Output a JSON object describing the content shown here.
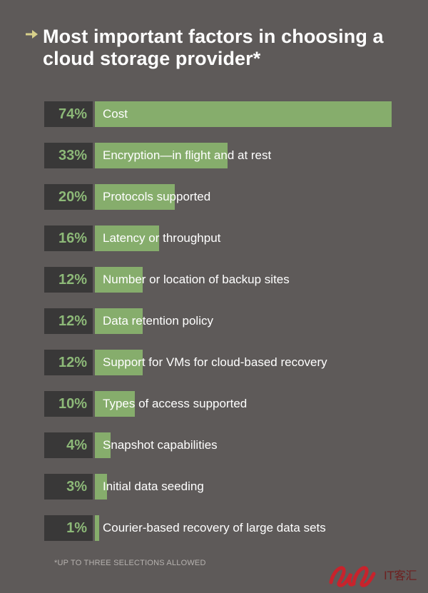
{
  "header": {
    "title": "Most important factors in choosing a\ncloud storage provider*"
  },
  "footnote": "*UP TO THREE SELECTIONS ALLOWED",
  "colors": {
    "background": "#5e5a59",
    "bar": "#86ad6c",
    "percent_box": "#393838",
    "percent_text": "#8db978",
    "arrow": "#d8d08a"
  },
  "icons": {
    "title_arrow": "arrow-right-icon",
    "logo": "watermark-logo"
  },
  "chart_data": {
    "type": "bar",
    "orientation": "horizontal",
    "title": "Most important factors in choosing a cloud storage provider*",
    "xlabel": "",
    "ylabel": "",
    "xlim": [
      0,
      74
    ],
    "categories": [
      "Cost",
      "Encryption—in flight and at rest",
      "Protocols supported",
      "Latency or throughput",
      "Number or location of backup sites",
      "Data retention policy",
      "Support for VMs for cloud-based recovery",
      "Types of access supported",
      "Snapshot capabilities",
      "Initial data seeding",
      "Courier-based recovery of large data sets"
    ],
    "values": [
      74,
      33,
      20,
      16,
      12,
      12,
      12,
      10,
      4,
      3,
      1
    ],
    "value_labels": [
      "74%",
      "33%",
      "20%",
      "16%",
      "12%",
      "12%",
      "12%",
      "10%",
      "4%",
      "3%",
      "1%"
    ],
    "grid": false,
    "legend": "none"
  },
  "watermark": "IT客汇"
}
